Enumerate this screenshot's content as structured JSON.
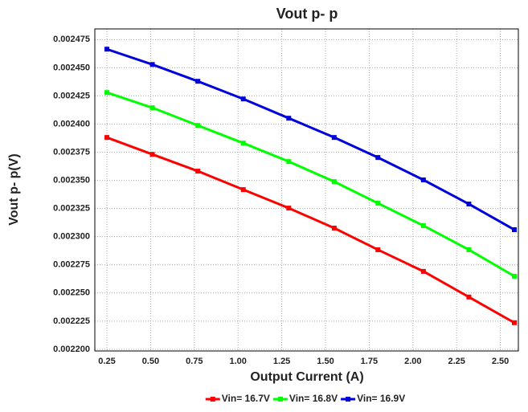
{
  "chart_data": {
    "type": "line",
    "title": "Vout p- p",
    "x_label": "Output Current (A)",
    "y_label": "Vout p- p(V)",
    "x": [
      0.25,
      0.51,
      0.77,
      1.03,
      1.29,
      1.55,
      1.8,
      2.06,
      2.32,
      2.58
    ],
    "series": [
      {
        "name": "Vin= 16.7V",
        "color": "#ff0000",
        "values": [
          0.0023881,
          0.0023731,
          0.0023582,
          0.0023418,
          0.0023254,
          0.0023076,
          0.0022884,
          0.0022692,
          0.0022464,
          0.0022236
        ]
      },
      {
        "name": "Vin= 16.8V",
        "color": "#00ff00",
        "values": [
          0.002428,
          0.0024145,
          0.0023988,
          0.0023831,
          0.0023667,
          0.0023489,
          0.0023297,
          0.0023098,
          0.0022884,
          0.0022649
        ]
      },
      {
        "name": "Vin= 16.9V",
        "color": "#0000dd",
        "values": [
          0.0024665,
          0.0024529,
          0.002438,
          0.0024223,
          0.0024052,
          0.0023881,
          0.0023703,
          0.0023504,
          0.002329,
          0.0023062
        ]
      }
    ],
    "xlim": [
      0.181,
      2.603
    ],
    "ylim": [
      0.0021985,
      0.0024845
    ],
    "xticks": [
      0.25,
      {
        "value": 0.5,
        "label": "0.50"
      },
      0.75,
      {
        "value": 1,
        "label": "1.00"
      },
      1.25,
      {
        "value": 1.5,
        "label": "1.50"
      },
      1.75,
      {
        "value": 2,
        "label": "2.00"
      },
      2.25,
      {
        "value": 2.5,
        "label": "2.50"
      }
    ],
    "yticks": [
      {
        "value": 0.0022,
        "label": "0.002200"
      },
      {
        "value": 0.002225,
        "label": "0.002225"
      },
      {
        "value": 0.00225,
        "label": "0.002250"
      },
      {
        "value": 0.002275,
        "label": "0.002275"
      },
      {
        "value": 0.0023,
        "label": "0.002300"
      },
      {
        "value": 0.002325,
        "label": "0.002325"
      },
      {
        "value": 0.00235,
        "label": "0.002350"
      },
      {
        "value": 0.002375,
        "label": "0.002375"
      },
      {
        "value": 0.0024,
        "label": "0.002400"
      },
      {
        "value": 0.002425,
        "label": "0.002425"
      },
      {
        "value": 0.00245,
        "label": "0.002450"
      },
      {
        "value": 0.002475,
        "label": "0.002475"
      }
    ],
    "grid": true,
    "legend": "bottom"
  }
}
